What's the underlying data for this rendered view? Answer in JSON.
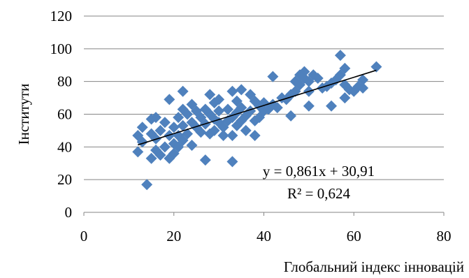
{
  "chart_data": {
    "type": "scatter",
    "xlabel": "Глобальний індекс інновацій",
    "ylabel": "Інститути",
    "xlim": [
      0,
      80
    ],
    "ylim": [
      0,
      120
    ],
    "x_ticks": [
      0,
      20,
      40,
      60,
      80
    ],
    "y_ticks": [
      0,
      20,
      40,
      60,
      80,
      100,
      120
    ],
    "grid": "horizontal",
    "marker_color": "#4F81BD",
    "trendline_color": "#000000",
    "trendline": {
      "slope": 0.861,
      "intercept": 30.91,
      "x_range": [
        12,
        65
      ],
      "equation": "y = 0,861x + 30,91",
      "r_squared": "R² = 0,624"
    },
    "points": [
      [
        12,
        47
      ],
      [
        12,
        37
      ],
      [
        13,
        52
      ],
      [
        13,
        43
      ],
      [
        14,
        17
      ],
      [
        15,
        48
      ],
      [
        15,
        57
      ],
      [
        15,
        33
      ],
      [
        16,
        58
      ],
      [
        16,
        45
      ],
      [
        16,
        38
      ],
      [
        17,
        50
      ],
      [
        17,
        35
      ],
      [
        18,
        55
      ],
      [
        18,
        40
      ],
      [
        19,
        47
      ],
      [
        19,
        33
      ],
      [
        19,
        69
      ],
      [
        20,
        52
      ],
      [
        20,
        42
      ],
      [
        20,
        36
      ],
      [
        21,
        58
      ],
      [
        21,
        47
      ],
      [
        21,
        40
      ],
      [
        22,
        63
      ],
      [
        22,
        53
      ],
      [
        22,
        44
      ],
      [
        22,
        74
      ],
      [
        23,
        60
      ],
      [
        23,
        48
      ],
      [
        24,
        66
      ],
      [
        24,
        55
      ],
      [
        24,
        41
      ],
      [
        25,
        62
      ],
      [
        25,
        52
      ],
      [
        26,
        58
      ],
      [
        26,
        49
      ],
      [
        27,
        63
      ],
      [
        27,
        54
      ],
      [
        27,
        32
      ],
      [
        28,
        72
      ],
      [
        28,
        60
      ],
      [
        28,
        48
      ],
      [
        29,
        67
      ],
      [
        29,
        57
      ],
      [
        29,
        50
      ],
      [
        30,
        69
      ],
      [
        30,
        62
      ],
      [
        30,
        55
      ],
      [
        31,
        52
      ],
      [
        31,
        47
      ],
      [
        32,
        63
      ],
      [
        32,
        56
      ],
      [
        33,
        74
      ],
      [
        33,
        58
      ],
      [
        33,
        47
      ],
      [
        33,
        31
      ],
      [
        34,
        68
      ],
      [
        34,
        61
      ],
      [
        34,
        53
      ],
      [
        35,
        75
      ],
      [
        35,
        64
      ],
      [
        35,
        56
      ],
      [
        36,
        59
      ],
      [
        36,
        50
      ],
      [
        37,
        72
      ],
      [
        37,
        62
      ],
      [
        38,
        68
      ],
      [
        38,
        56
      ],
      [
        38,
        47
      ],
      [
        39,
        65
      ],
      [
        39,
        58
      ],
      [
        40,
        67
      ],
      [
        40,
        62
      ],
      [
        41,
        63
      ],
      [
        42,
        83
      ],
      [
        42,
        66
      ],
      [
        43,
        64
      ],
      [
        44,
        70
      ],
      [
        45,
        69
      ],
      [
        46,
        72
      ],
      [
        46,
        59
      ],
      [
        47,
        80
      ],
      [
        47,
        74
      ],
      [
        48,
        84
      ],
      [
        48,
        78
      ],
      [
        49,
        86
      ],
      [
        49,
        82
      ],
      [
        50,
        80
      ],
      [
        50,
        74
      ],
      [
        50,
        65
      ],
      [
        51,
        84
      ],
      [
        52,
        82
      ],
      [
        53,
        76
      ],
      [
        54,
        77
      ],
      [
        55,
        65
      ],
      [
        55,
        79
      ],
      [
        56,
        81
      ],
      [
        57,
        96
      ],
      [
        57,
        84
      ],
      [
        58,
        88
      ],
      [
        58,
        78
      ],
      [
        58,
        70
      ],
      [
        59,
        75
      ],
      [
        60,
        74
      ],
      [
        61,
        77
      ],
      [
        62,
        81
      ],
      [
        62,
        76
      ],
      [
        65,
        89
      ]
    ]
  }
}
